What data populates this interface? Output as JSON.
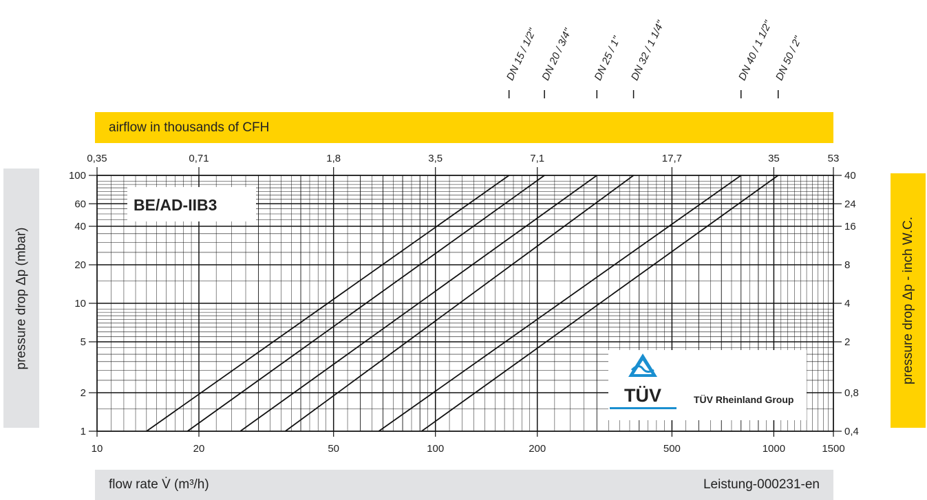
{
  "chart_data": {
    "type": "line",
    "title": "BE/AD-IIB3",
    "xlabel": "flow rate V̇ (m³/h)",
    "ylabel": "pressure drop Δp (mbar)",
    "top_axis_label": "airflow in thousands of CFH",
    "right_axis_label": "pressure  drop Δp - inch W.C.",
    "reference": "Leistung-000231-en",
    "x_scale": "log",
    "y_scale": "log",
    "xlim": [
      10,
      1500
    ],
    "ylim": [
      1,
      100
    ],
    "grid": true,
    "x_ticks": [
      {
        "v": 10,
        "label": "10"
      },
      {
        "v": 20,
        "label": "20"
      },
      {
        "v": 50,
        "label": "50"
      },
      {
        "v": 100,
        "label": "100"
      },
      {
        "v": 200,
        "label": "200"
      },
      {
        "v": 500,
        "label": "500"
      },
      {
        "v": 1000,
        "label": "1000"
      },
      {
        "v": 1500,
        "label": "1500"
      }
    ],
    "y_ticks": [
      {
        "v": 1,
        "label": "1"
      },
      {
        "v": 2,
        "label": "2"
      },
      {
        "v": 5,
        "label": "5"
      },
      {
        "v": 10,
        "label": "10"
      },
      {
        "v": 20,
        "label": "20"
      },
      {
        "v": 40,
        "label": "40"
      },
      {
        "v": 60,
        "label": "60"
      },
      {
        "v": 100,
        "label": "100"
      }
    ],
    "top_ticks": [
      {
        "v": 10,
        "label": "0,35"
      },
      {
        "v": 20,
        "label": "0,71"
      },
      {
        "v": 50,
        "label": "1,8"
      },
      {
        "v": 100,
        "label": "3,5"
      },
      {
        "v": 200,
        "label": "7,1"
      },
      {
        "v": 500,
        "label": "17,7"
      },
      {
        "v": 1000,
        "label": "35"
      },
      {
        "v": 1500,
        "label": "53"
      }
    ],
    "right_ticks": [
      {
        "v": 1,
        "label": "0,4"
      },
      {
        "v": 2,
        "label": "0,8"
      },
      {
        "v": 5,
        "label": "2"
      },
      {
        "v": 10,
        "label": "4"
      },
      {
        "v": 20,
        "label": "8"
      },
      {
        "v": 40,
        "label": "16"
      },
      {
        "v": 60,
        "label": "24"
      },
      {
        "v": 100,
        "label": "40"
      }
    ],
    "series": [
      {
        "name": "DN 15 / 1/2\"",
        "x": [
          14,
          165
        ],
        "y": [
          1,
          100
        ]
      },
      {
        "name": "DN 20 / 3/4\"",
        "x": [
          18.5,
          210
        ],
        "y": [
          1,
          100
        ]
      },
      {
        "name": "DN 25 / 1\"",
        "x": [
          26.5,
          300
        ],
        "y": [
          1,
          100
        ]
      },
      {
        "name": "DN 32 / 1 1/4\"",
        "x": [
          36,
          385
        ],
        "y": [
          1,
          100
        ]
      },
      {
        "name": "DN 40 / 1 1/2\"",
        "x": [
          68,
          800
        ],
        "y": [
          1,
          100
        ]
      },
      {
        "name": "DN 50 / 2\"",
        "x": [
          91,
          1030
        ],
        "y": [
          1,
          100
        ]
      }
    ]
  },
  "certification": {
    "logo_text": "TÜV",
    "group_text": "TÜV Rheinland Group",
    "accent_color": "#1a8fd0"
  },
  "colors": {
    "band_yellow": "#ffd200",
    "band_gray": "#e1e2e4"
  }
}
